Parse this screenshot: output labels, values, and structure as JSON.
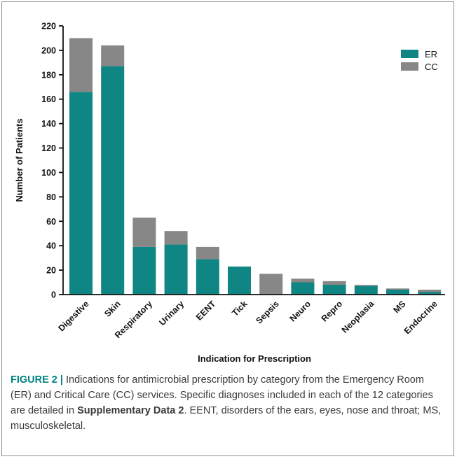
{
  "figure": {
    "caption": {
      "label": "FIGURE 2 |",
      "text_before": "Indications for antimicrobial prescription by category from the Emergency Room (ER) and Critical Care (CC) services. Specific diagnoses included in each of the 12 categories are detailed in",
      "strong_text": "Supplementary Data 2",
      "text_after": ". EENT, disorders of the ears, eyes, nose and throat; MS, musculoskeletal."
    }
  },
  "chart_data": {
    "type": "bar",
    "stacked": true,
    "categories": [
      "Digestive",
      "Skin",
      "Respiratory",
      "Urinary",
      "EENT",
      "Tick",
      "Sepsis",
      "Neuro",
      "Repro",
      "Neoplasia",
      "MS",
      "Endocrine"
    ],
    "series": [
      {
        "name": "ER",
        "color": "#0f8584",
        "values": [
          166,
          187,
          39,
          41,
          29,
          23,
          0,
          10,
          8,
          7,
          4,
          2
        ]
      },
      {
        "name": "CC",
        "color": "#878787",
        "values": [
          44,
          17,
          24,
          11,
          10,
          0,
          17,
          3,
          3,
          1,
          1,
          2
        ]
      }
    ],
    "xlabel": "Indication for Prescription",
    "ylabel": "Number of Patients",
    "ylim": [
      0,
      220
    ],
    "yticks": [
      0,
      20,
      40,
      60,
      80,
      100,
      120,
      140,
      160,
      180,
      200,
      220
    ],
    "legend_position": "top-right",
    "grid": false
  }
}
